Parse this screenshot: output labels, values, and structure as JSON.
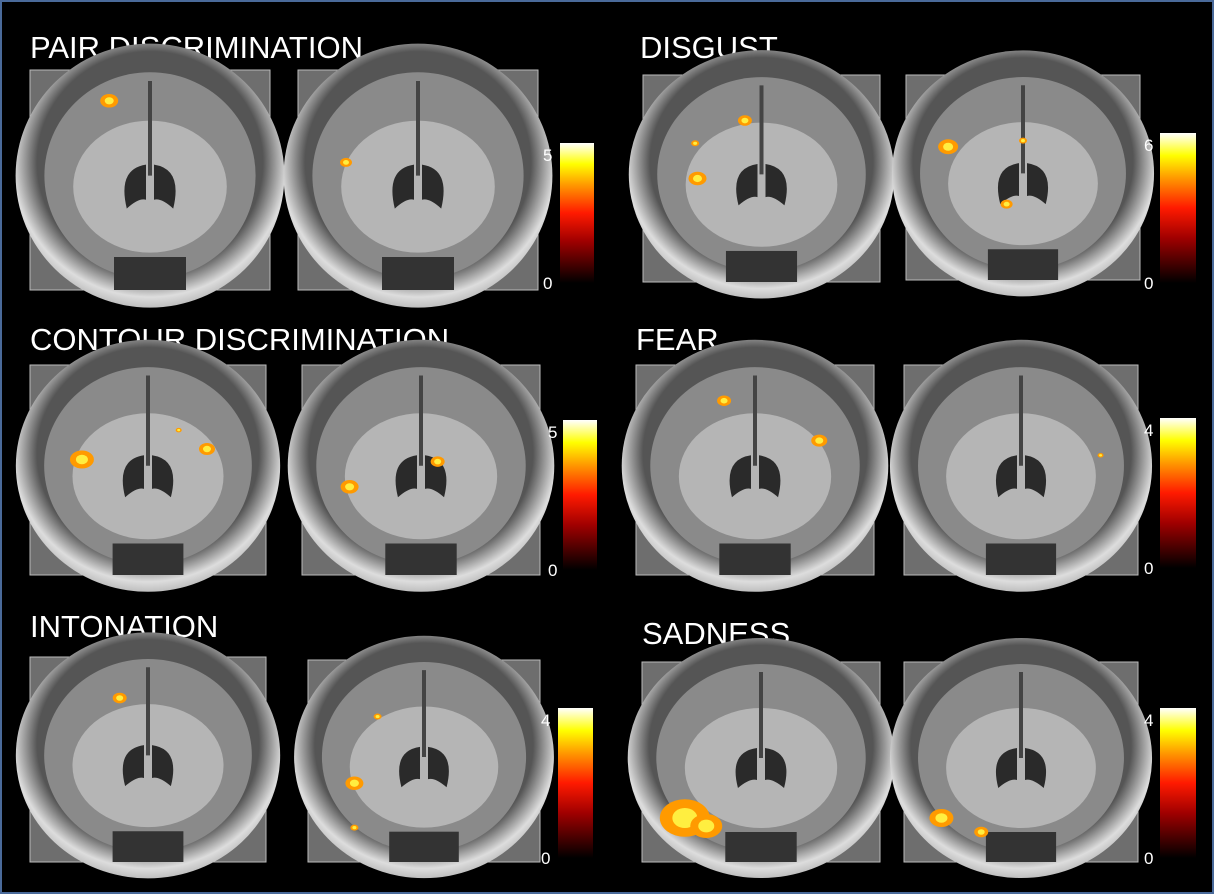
{
  "panels": [
    {
      "title": "PAIR DISCRIMINATION",
      "colorbar": {
        "max": 5,
        "min": 0
      }
    },
    {
      "title": "DISGUST",
      "colorbar": {
        "max": 6,
        "min": 0
      }
    },
    {
      "title": "CONTOUR DISCRIMINATION",
      "colorbar": {
        "max": 5,
        "min": 0
      }
    },
    {
      "title": "FEAR",
      "colorbar": {
        "max": 4,
        "min": 0
      }
    },
    {
      "title": "INTONATION",
      "colorbar": {
        "max": 4,
        "min": 0
      }
    },
    {
      "title": "SADNESS",
      "colorbar": {
        "max": 4,
        "min": 0
      }
    }
  ]
}
